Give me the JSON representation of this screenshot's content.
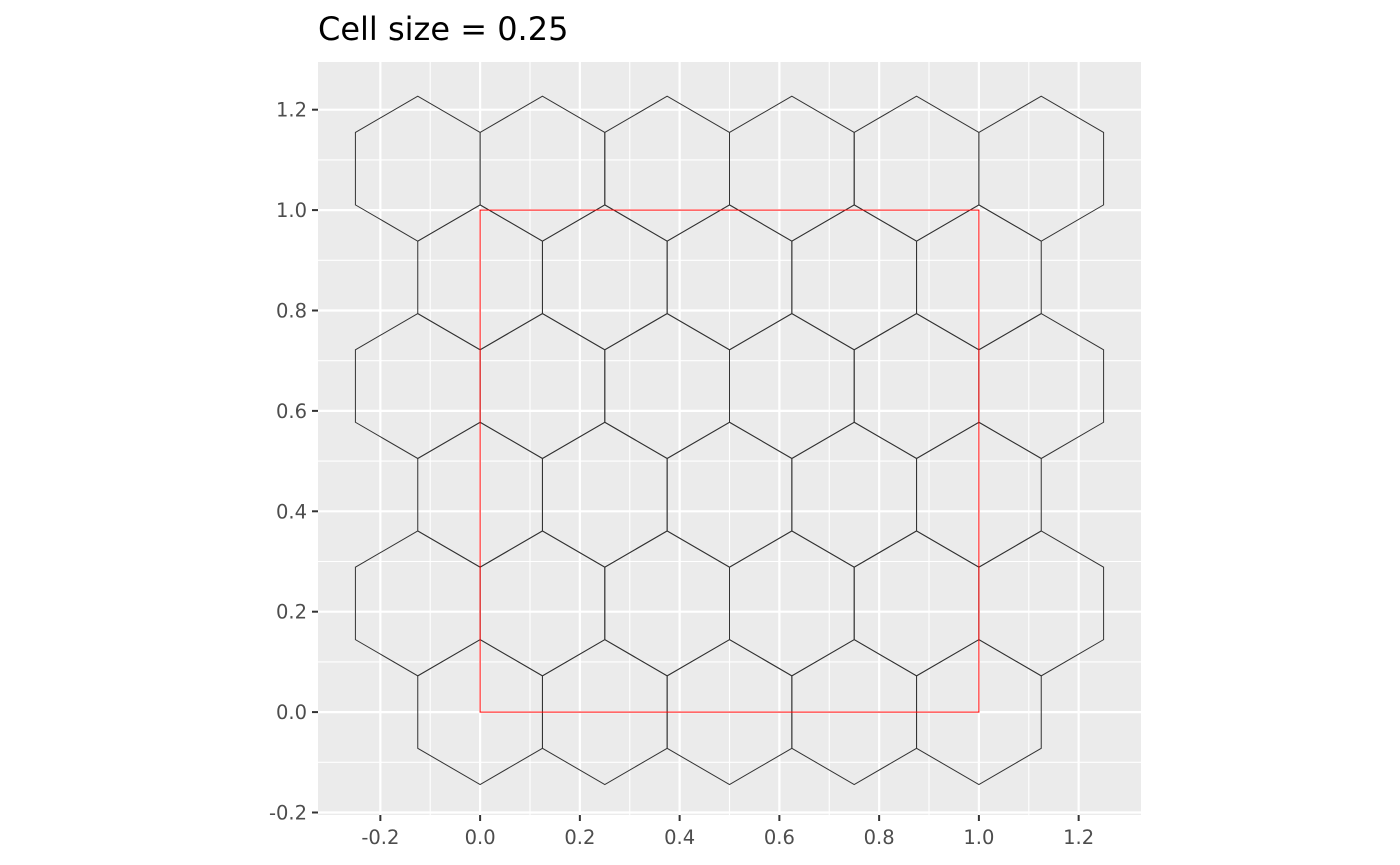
{
  "chart_data": {
    "type": "scatter",
    "title": "Cell size = 0.25",
    "xlabel": "",
    "ylabel": "",
    "xlim": [
      -0.325,
      1.325
    ],
    "ylim": [
      -0.205,
      1.295
    ],
    "x_ticks": [
      "-0.2",
      "0.0",
      "0.2",
      "0.4",
      "0.6",
      "0.8",
      "1.0",
      "1.2"
    ],
    "y_ticks": [
      "-0.2",
      "0.0",
      "0.2",
      "0.4",
      "0.6",
      "0.8",
      "1.0",
      "1.2"
    ],
    "grid": true,
    "aspect": "equal",
    "boundary": {
      "shape": "square",
      "xmin": 0.0,
      "xmax": 1.0,
      "ymin": 0.0,
      "ymax": 1.0,
      "color": "#ff0000"
    },
    "hex_grid": {
      "cell_size": 0.25,
      "orientation": "pointy-top",
      "color": "#333333",
      "fill": "none",
      "rows": [
        {
          "y": 0.0,
          "x": [
            0.0,
            0.25,
            0.5,
            0.75,
            1.0
          ]
        },
        {
          "y": 0.21651,
          "x": [
            -0.125,
            0.125,
            0.375,
            0.625,
            0.875,
            1.125
          ]
        },
        {
          "y": 0.43301,
          "x": [
            0.0,
            0.25,
            0.5,
            0.75,
            1.0
          ]
        },
        {
          "y": 0.64952,
          "x": [
            -0.125,
            0.125,
            0.375,
            0.625,
            0.875,
            1.125
          ]
        },
        {
          "y": 0.86603,
          "x": [
            0.0,
            0.25,
            0.5,
            0.75,
            1.0
          ]
        },
        {
          "y": 1.08253,
          "x": [
            -0.125,
            0.125,
            0.375,
            0.625,
            0.875,
            1.125
          ]
        }
      ]
    },
    "colors": {
      "panel_background": "#ebebeb",
      "grid_line": "#ffffff",
      "axis_text": "#4d4d4d",
      "tick_mark": "#333333"
    }
  }
}
